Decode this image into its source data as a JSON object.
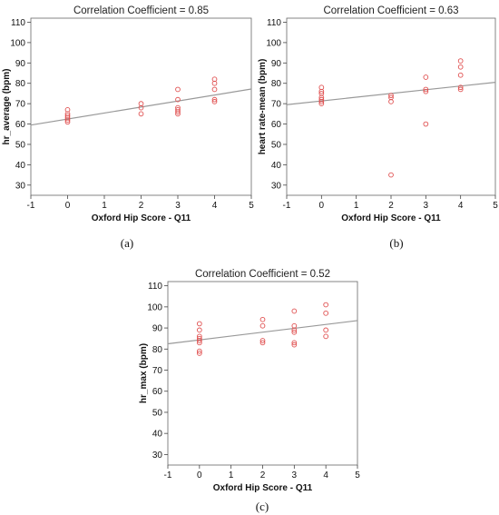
{
  "chart_data": [
    {
      "type": "scatter",
      "title": "Correlation Coefficient = 0.85",
      "xlabel": "Oxford Hip Score - Q11",
      "ylabel": "hr_average (bpm)",
      "caption": "(a)",
      "xlim": [
        -1,
        5
      ],
      "ylim": [
        25,
        112
      ],
      "xticks": [
        "-1",
        "0",
        "1",
        "2",
        "3",
        "4",
        "5"
      ],
      "yticks": [
        "30",
        "40",
        "50",
        "60",
        "70",
        "80",
        "90",
        "100",
        "110"
      ],
      "grid": false,
      "point_color": "#e05050",
      "line_color": "#999999",
      "fit_line": [
        [
          -1,
          59.5
        ],
        [
          5,
          77.2
        ]
      ],
      "points": [
        [
          0,
          61
        ],
        [
          0,
          62
        ],
        [
          0,
          63
        ],
        [
          0,
          64
        ],
        [
          0,
          65
        ],
        [
          0,
          67
        ],
        [
          2,
          65
        ],
        [
          2,
          68
        ],
        [
          2,
          70
        ],
        [
          3,
          65
        ],
        [
          3,
          66
        ],
        [
          3,
          67
        ],
        [
          3,
          68
        ],
        [
          3,
          72
        ],
        [
          3,
          77
        ],
        [
          4,
          71
        ],
        [
          4,
          72
        ],
        [
          4,
          77
        ],
        [
          4,
          80
        ],
        [
          4,
          82
        ]
      ]
    },
    {
      "type": "scatter",
      "title": "Correlation Coefficient = 0.63",
      "xlabel": "Oxford Hip Score - Q11",
      "ylabel": "heart rate-mean (bpm)",
      "caption": "(b)",
      "xlim": [
        -1,
        5
      ],
      "ylim": [
        25,
        112
      ],
      "xticks": [
        "-1",
        "0",
        "1",
        "2",
        "3",
        "4",
        "5"
      ],
      "yticks": [
        "30",
        "40",
        "50",
        "60",
        "70",
        "80",
        "90",
        "100",
        "110"
      ],
      "grid": false,
      "point_color": "#e05050",
      "line_color": "#999999",
      "fit_line": [
        [
          -1,
          69.5
        ],
        [
          5,
          80.5
        ]
      ],
      "points": [
        [
          0,
          70
        ],
        [
          0,
          71
        ],
        [
          0,
          72
        ],
        [
          0,
          73
        ],
        [
          0,
          75
        ],
        [
          0,
          76
        ],
        [
          0,
          78
        ],
        [
          2,
          35
        ],
        [
          2,
          71
        ],
        [
          2,
          73
        ],
        [
          2,
          74
        ],
        [
          3,
          60
        ],
        [
          3,
          76
        ],
        [
          3,
          77
        ],
        [
          3,
          83
        ],
        [
          4,
          77
        ],
        [
          4,
          78
        ],
        [
          4,
          84
        ],
        [
          4,
          88
        ],
        [
          4,
          91
        ]
      ]
    },
    {
      "type": "scatter",
      "title": "Correlation Coefficient = 0.52",
      "xlabel": "Oxford Hip Score - Q11",
      "ylabel": "hr_max (bpm)",
      "caption": "(c)",
      "xlim": [
        -1,
        5
      ],
      "ylim": [
        25,
        112
      ],
      "xticks": [
        "-1",
        "0",
        "1",
        "2",
        "3",
        "4",
        "5"
      ],
      "yticks": [
        "30",
        "40",
        "50",
        "60",
        "70",
        "80",
        "90",
        "100",
        "110"
      ],
      "grid": false,
      "point_color": "#e05050",
      "line_color": "#999999",
      "fit_line": [
        [
          -1,
          82.5
        ],
        [
          5,
          93.5
        ]
      ],
      "points": [
        [
          0,
          78
        ],
        [
          0,
          79
        ],
        [
          0,
          83
        ],
        [
          0,
          84
        ],
        [
          0,
          85
        ],
        [
          0,
          86
        ],
        [
          0,
          89
        ],
        [
          0,
          92
        ],
        [
          2,
          83
        ],
        [
          2,
          84
        ],
        [
          2,
          91
        ],
        [
          2,
          94
        ],
        [
          3,
          82
        ],
        [
          3,
          83
        ],
        [
          3,
          88
        ],
        [
          3,
          89
        ],
        [
          3,
          91
        ],
        [
          3,
          98
        ],
        [
          4,
          86
        ],
        [
          4,
          89
        ],
        [
          4,
          97
        ],
        [
          4,
          101
        ]
      ]
    }
  ]
}
